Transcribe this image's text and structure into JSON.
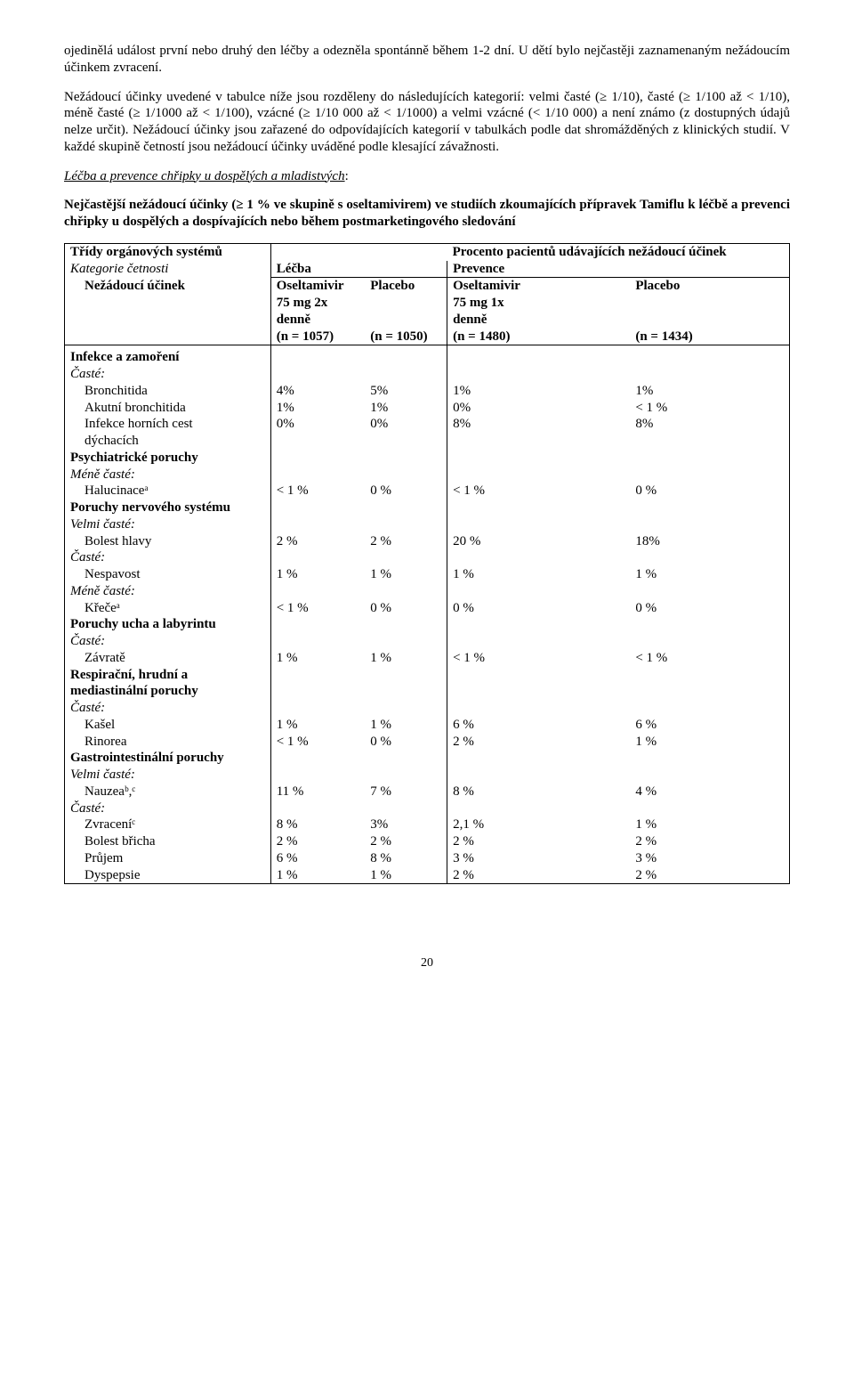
{
  "para1": "ojedinělá událost první nebo druhý den léčby a odezněla spontánně během 1-2 dní. U dětí bylo nejčastěji zaznamenaným nežádoucím účinkem zvracení.",
  "para2": "Nežádoucí účinky uvedené v tabulce níže jsou rozděleny do následujících kategorií: velmi časté (≥ 1/10), časté (≥ 1/100 až < 1/10), méně časté (≥ 1/1000 až < 1/100), vzácné (≥ 1/10 000 až < 1/1000) a velmi vzácné (< 1/10 000) a není známo (z dostupných údajů nelze určit). Nežádoucí účinky jsou zařazené do odpovídajících kategorií v tabulkách podle dat shromážděných z klinických studií. V každé skupině četností jsou nežádoucí účinky uváděné podle klesající závažnosti.",
  "section_title": "Léčba a prevence chřipky u dospělých a mladistvých",
  "para3_bold": "Nejčastější nežádoucí účinky (≥ 1 % ve skupině s oseltamivirem) ve studiích zkoumajících přípravek Tamiflu k léčbě a prevenci chřipky u dospělých a dospívajících nebo během postmarketingového sledování",
  "table": {
    "header": {
      "col1a": "Třídy orgánových systémů",
      "col1b": "Kategorie četnosti",
      "col1c": "Nežádoucí účinek",
      "top_span": "Procento pacientů udávajících nežádoucí účinek",
      "treatment": "Léčba",
      "prevention": "Prevence",
      "osel_treat1": "Oseltamivir",
      "osel_treat2": "75 mg 2x",
      "osel_treat3": "denně",
      "osel_treat4": "(n = 1057)",
      "placebo_treat": "Placebo",
      "placebo_treat_n": "(n = 1050)",
      "osel_prev1": "Oseltamivir",
      "osel_prev2": "75 mg 1x",
      "osel_prev3": "denně",
      "osel_prev4": "(n = 1480)",
      "placebo_prev": "Placebo",
      "placebo_prev_n": "(n = 1434)"
    },
    "freq": {
      "caste": "Časté",
      "mene": "Méně časté",
      "velmi": "Velmi časté"
    },
    "groups": {
      "infekce": "Infekce a zamoření",
      "psych": "Psychiatrické poruchy",
      "nerv": "Poruchy nervového systému",
      "ucho": "Poruchy ucha a labyrintu",
      "resp1": "Respirační, hrudní a",
      "resp2": "mediastinální poruchy",
      "gi": "Gastrointestinální poruchy"
    },
    "rows": {
      "bronchitida": {
        "label": "Bronchitida",
        "a": "4%",
        "b": "5%",
        "c": "1%",
        "d": "1%"
      },
      "akbronch": {
        "label": "Akutní bronchitida",
        "a": "1%",
        "b": "1%",
        "c": "0%",
        "d": "< 1 %"
      },
      "infhorni1": {
        "label1": "Infekce horních cest",
        "label2": "dýchacích",
        "a": "0%",
        "b": "0%",
        "c": "8%",
        "d": "8%"
      },
      "halucinace": {
        "label": "Halucinaceᵃ",
        "a": "< 1 %",
        "b": "0 %",
        "c": "< 1 %",
        "d": "0 %"
      },
      "bolesthlavy": {
        "label": "Bolest hlavy",
        "a": "2 %",
        "b": "2 %",
        "c": "20 %",
        "d": "18%"
      },
      "nespavost": {
        "label": "Nespavost",
        "a": "1 %",
        "b": "1 %",
        "c": "1 %",
        "d": "1 %"
      },
      "krece": {
        "label": "Křečeᵃ",
        "a": "< 1 %",
        "b": "0 %",
        "c": "0 %",
        "d": "0 %"
      },
      "zavrate": {
        "label": "Závratě",
        "a": "1 %",
        "b": "1 %",
        "c": "< 1 %",
        "d": "< 1 %"
      },
      "kasel": {
        "label": "Kašel",
        "a": "1 %",
        "b": "1 %",
        "c": "6 %",
        "d": "6 %"
      },
      "rinorea": {
        "label": "Rinorea",
        "a": "< 1 %",
        "b": "0 %",
        "c": "2 %",
        "d": "1 %"
      },
      "nauzea": {
        "label": "Nauzeaᵇ,ᶜ",
        "a": "11 %",
        "b": "7 %",
        "c": "8 %",
        "d": "4 %"
      },
      "zvraceni": {
        "label": "Zvraceníᶜ",
        "a": "8 %",
        "b": "3%",
        "c": "2,1 %",
        "d": "1 %"
      },
      "bolestbricha": {
        "label": "Bolest břicha",
        "a": "2 %",
        "b": "2 %",
        "c": "2 %",
        "d": "2 %"
      },
      "prujem": {
        "label": "Průjem",
        "a": "6 %",
        "b": "8 %",
        "c": "3 %",
        "d": "3 %"
      },
      "dyspepsie": {
        "label": "Dyspepsie",
        "a": "1 %",
        "b": "1 %",
        "c": "2 %",
        "d": "2 %"
      }
    }
  },
  "page_number": "20"
}
